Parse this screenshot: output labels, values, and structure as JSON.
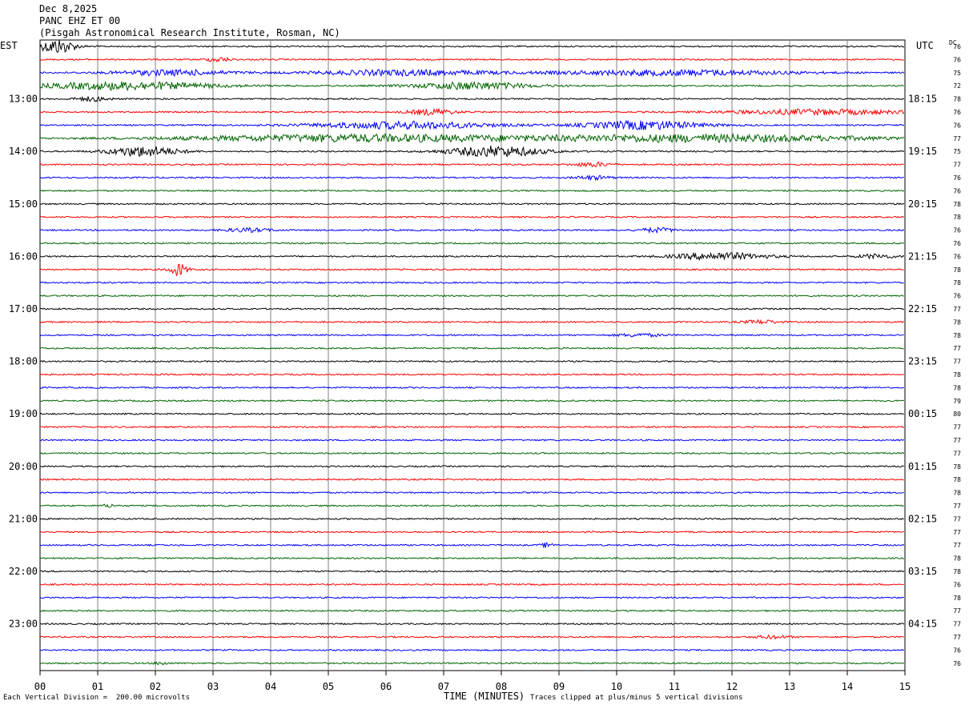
{
  "header": {
    "date": "Dec 8,2025",
    "station": "PANC EHZ ET 00",
    "location": "(Pisgah Astronomical Research Institute, Rosman, NC)"
  },
  "left_axis_title": "EST",
  "right_axis_title": "UTC",
  "dc_title": "DC",
  "footer": {
    "scale_note": "Each Vertical Division =  200.00 microvolts",
    "clip_note": "Traces clipped at plus/minus 5 vertical divisions"
  },
  "chart_data": {
    "type": "line",
    "subtype": "helicorder",
    "xlabel": "TIME (MINUTES)",
    "x_ticks": [
      "00",
      "01",
      "02",
      "03",
      "04",
      "05",
      "06",
      "07",
      "08",
      "09",
      "10",
      "11",
      "12",
      "13",
      "14",
      "15"
    ],
    "xlim": [
      0,
      15
    ],
    "trace_colors": [
      "#000000",
      "#ff0000",
      "#0000ff",
      "#006400"
    ],
    "traces_per_hour": 4,
    "num_traces": 48,
    "est_hour_labels": [
      "13:00",
      "14:00",
      "15:00",
      "16:00",
      "17:00",
      "18:00",
      "19:00",
      "20:00",
      "21:00",
      "22:00",
      "23:00"
    ],
    "utc_hour_labels": [
      "18:15",
      "19:15",
      "20:15",
      "21:15",
      "22:15",
      "23:15",
      "00:15",
      "01:15",
      "02:15",
      "03:15",
      "04:15"
    ],
    "dc_offsets": [
      76,
      76,
      75,
      72,
      78,
      76,
      76,
      77,
      75,
      77,
      76,
      76,
      78,
      78,
      76,
      76,
      76,
      78,
      78,
      76,
      77,
      78,
      78,
      77,
      77,
      78,
      78,
      79,
      80,
      77,
      77,
      77,
      78,
      78,
      78,
      77,
      77,
      77,
      77,
      78,
      78,
      76,
      78,
      77,
      77,
      77,
      76,
      76
    ],
    "activity": [
      {
        "trace": 0,
        "minute": 0.3,
        "amp": 4.0,
        "width": 0.3
      },
      {
        "trace": 1,
        "minute": 3.1,
        "amp": 1.2,
        "width": 0.2
      },
      {
        "trace": 2,
        "minute": 2.3,
        "amp": 1.5,
        "width": 1.0
      },
      {
        "trace": 2,
        "minute": 6.3,
        "amp": 1.5,
        "width": 1.5
      },
      {
        "trace": 2,
        "minute": 11.0,
        "amp": 1.5,
        "width": 2.0
      },
      {
        "trace": 3,
        "minute": 1.5,
        "amp": 2.2,
        "width": 1.5
      },
      {
        "trace": 3,
        "minute": 7.5,
        "amp": 2.0,
        "width": 1.0
      },
      {
        "trace": 4,
        "minute": 0.9,
        "amp": 1.2,
        "width": 0.3
      },
      {
        "trace": 5,
        "minute": 6.8,
        "amp": 1.6,
        "width": 0.4
      },
      {
        "trace": 5,
        "minute": 13.5,
        "amp": 1.4,
        "width": 1.5
      },
      {
        "trace": 6,
        "minute": 6.3,
        "amp": 2.0,
        "width": 1.5
      },
      {
        "trace": 6,
        "minute": 10.5,
        "amp": 2.4,
        "width": 1.0
      },
      {
        "trace": 7,
        "minute": 5.5,
        "amp": 2.0,
        "width": 3.0
      },
      {
        "trace": 7,
        "minute": 11.5,
        "amp": 2.0,
        "width": 3.0
      },
      {
        "trace": 8,
        "minute": 1.8,
        "amp": 2.8,
        "width": 0.6
      },
      {
        "trace": 8,
        "minute": 7.9,
        "amp": 3.0,
        "width": 0.8
      },
      {
        "trace": 9,
        "minute": 9.6,
        "amp": 1.2,
        "width": 0.3
      },
      {
        "trace": 10,
        "minute": 9.6,
        "amp": 1.0,
        "width": 0.3
      },
      {
        "trace": 14,
        "minute": 3.6,
        "amp": 1.0,
        "width": 0.4
      },
      {
        "trace": 14,
        "minute": 10.7,
        "amp": 1.2,
        "width": 0.3
      },
      {
        "trace": 16,
        "minute": 11.8,
        "amp": 2.0,
        "width": 0.8
      },
      {
        "trace": 16,
        "minute": 14.5,
        "amp": 1.2,
        "width": 0.3
      },
      {
        "trace": 17,
        "minute": 2.4,
        "amp": 3.5,
        "width": 0.15
      },
      {
        "trace": 21,
        "minute": 12.5,
        "amp": 1.0,
        "width": 0.3
      },
      {
        "trace": 22,
        "minute": 10.4,
        "amp": 0.8,
        "width": 0.4
      },
      {
        "trace": 35,
        "minute": 1.2,
        "amp": 0.9,
        "width": 0.1
      },
      {
        "trace": 38,
        "minute": 8.8,
        "amp": 1.3,
        "width": 0.1
      },
      {
        "trace": 47,
        "minute": 2.1,
        "amp": 1.0,
        "width": 0.1
      },
      {
        "trace": 45,
        "minute": 12.7,
        "amp": 0.8,
        "width": 0.3
      }
    ]
  }
}
